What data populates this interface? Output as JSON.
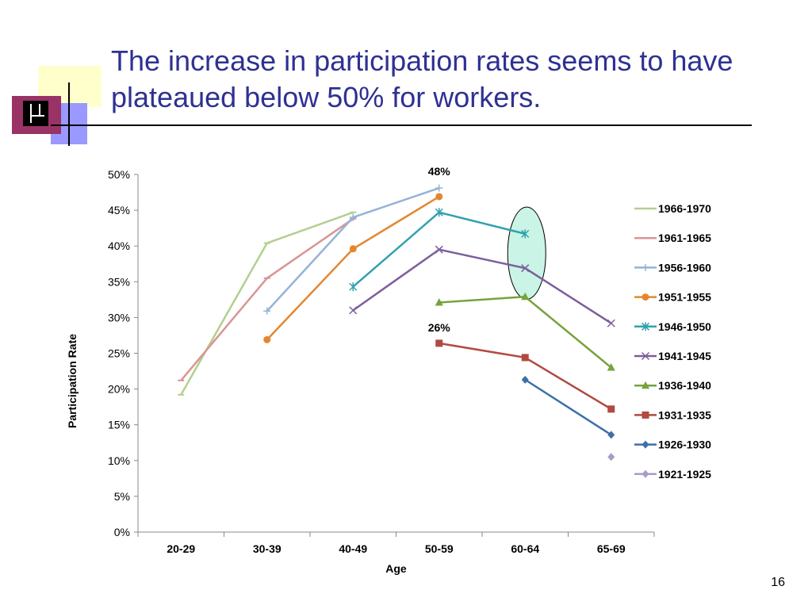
{
  "slide": {
    "title": "The increase in participation rates seems to have plateaued below 50% for workers.",
    "page_number": "16"
  },
  "colors": {
    "title": "#2E3192",
    "logo_yellow": "#FFFFCC",
    "logo_maroon": "#993366",
    "logo_blue": "#9999FF",
    "highlight_fill": "#C9F4E6"
  },
  "chart_data": {
    "type": "line",
    "categories": [
      "20-29",
      "30-39",
      "40-49",
      "50-59",
      "60-64",
      "65-69"
    ],
    "xlabel": "Age",
    "ylabel": "Participation Rate",
    "ylim": [
      0,
      0.5
    ],
    "yticks": [
      "0%",
      "5%",
      "10%",
      "15%",
      "20%",
      "25%",
      "30%",
      "35%",
      "40%",
      "45%",
      "50%"
    ],
    "grid": false,
    "legend": "right",
    "annotations": [
      {
        "text": "48%",
        "category": "50-59",
        "value": 0.48
      },
      {
        "text": "26%",
        "category": "50-59",
        "value": 0.26
      }
    ],
    "highlight": {
      "shape": "ellipse",
      "category": "60-64",
      "range": [
        0.33,
        0.45
      ]
    },
    "series": [
      {
        "name": "1966-1970",
        "color": "#B3CF8F",
        "marker": "dash",
        "values": [
          0.192,
          0.404,
          0.447,
          null,
          null,
          null
        ]
      },
      {
        "name": "1961-1965",
        "color": "#D99594",
        "marker": "dash",
        "values": [
          0.212,
          0.355,
          0.438,
          null,
          null,
          null
        ]
      },
      {
        "name": "1956-1960",
        "color": "#95B3D7",
        "marker": "plus",
        "values": [
          null,
          0.309,
          0.44,
          0.481,
          null,
          null
        ]
      },
      {
        "name": "1951-1955",
        "color": "#E3872F",
        "marker": "circle",
        "values": [
          null,
          0.269,
          0.396,
          0.469,
          null,
          null
        ]
      },
      {
        "name": "1946-1950",
        "color": "#31A1AE",
        "marker": "star",
        "values": [
          null,
          null,
          0.343,
          0.447,
          0.417,
          null
        ]
      },
      {
        "name": "1941-1945",
        "color": "#7D5E9B",
        "marker": "x",
        "values": [
          null,
          null,
          0.31,
          0.395,
          0.369,
          0.292
        ]
      },
      {
        "name": "1936-1940",
        "color": "#77A23C",
        "marker": "triangle",
        "values": [
          null,
          null,
          null,
          0.321,
          0.329,
          0.23
        ]
      },
      {
        "name": "1931-1935",
        "color": "#B14A42",
        "marker": "square",
        "values": [
          null,
          null,
          null,
          0.264,
          0.244,
          0.172
        ]
      },
      {
        "name": "1926-1930",
        "color": "#3D6FA9",
        "marker": "diamond",
        "values": [
          null,
          null,
          null,
          null,
          0.213,
          0.136
        ]
      },
      {
        "name": "1921-1925",
        "color": "#A99BC7",
        "marker": "diamond",
        "values": [
          null,
          null,
          null,
          null,
          null,
          0.105
        ]
      }
    ]
  }
}
